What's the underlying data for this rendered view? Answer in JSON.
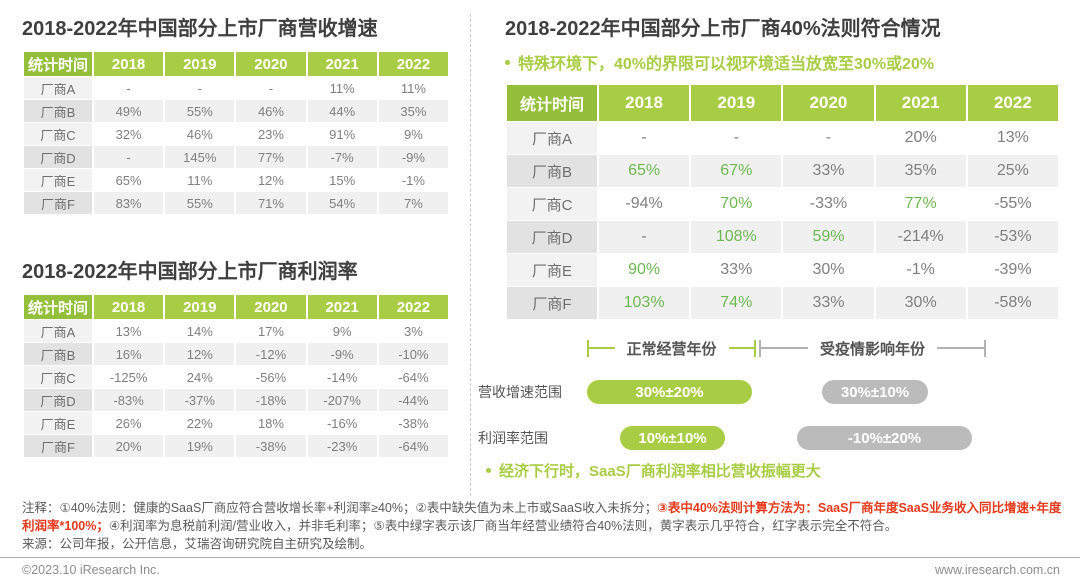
{
  "left": {
    "revenue_table": {
      "title": "2018-2022年中国部分上市厂商营收增速",
      "header": [
        "统计时间",
        "2018",
        "2019",
        "2020",
        "2021",
        "2022"
      ],
      "rows": [
        {
          "label": "厂商A",
          "values": [
            "-",
            "-",
            "-",
            "11%",
            "11%"
          ]
        },
        {
          "label": "厂商B",
          "values": [
            "49%",
            "55%",
            "46%",
            "44%",
            "35%"
          ]
        },
        {
          "label": "厂商C",
          "values": [
            "32%",
            "46%",
            "23%",
            "91%",
            "9%"
          ]
        },
        {
          "label": "厂商D",
          "values": [
            "-",
            "145%",
            "77%",
            "-7%",
            "-9%"
          ]
        },
        {
          "label": "厂商E",
          "values": [
            "65%",
            "11%",
            "12%",
            "15%",
            "-1%"
          ]
        },
        {
          "label": "厂商F",
          "values": [
            "83%",
            "55%",
            "71%",
            "54%",
            "7%"
          ]
        }
      ]
    },
    "profit_table": {
      "title": "2018-2022年中国部分上市厂商利润率",
      "header": [
        "统计时间",
        "2018",
        "2019",
        "2020",
        "2021",
        "2022"
      ],
      "rows": [
        {
          "label": "厂商A",
          "values": [
            "13%",
            "14%",
            "17%",
            "9%",
            "3%"
          ]
        },
        {
          "label": "厂商B",
          "values": [
            "16%",
            "12%",
            "-12%",
            "-9%",
            "-10%"
          ]
        },
        {
          "label": "厂商C",
          "values": [
            "-125%",
            "24%",
            "-56%",
            "-14%",
            "-64%"
          ]
        },
        {
          "label": "厂商D",
          "values": [
            "-83%",
            "-37%",
            "-18%",
            "-207%",
            "-44%"
          ]
        },
        {
          "label": "厂商E",
          "values": [
            "26%",
            "22%",
            "18%",
            "-16%",
            "-38%"
          ]
        },
        {
          "label": "厂商F",
          "values": [
            "20%",
            "19%",
            "-38%",
            "-23%",
            "-64%"
          ]
        }
      ]
    }
  },
  "right": {
    "rule40_table": {
      "title": "2018-2022年中国部分上市厂商40%法则符合情况",
      "note": "特殊环境下，40%的界限可以视环境适当放宽至30%或20%",
      "header": [
        "统计时间",
        "2018",
        "2019",
        "2020",
        "2021",
        "2022"
      ],
      "rows": [
        {
          "label": "厂商A",
          "values": [
            "-",
            "-",
            "-",
            "20%",
            "13%"
          ]
        },
        {
          "label": "厂商B",
          "values": [
            {
              "v": "65%",
              "green": true
            },
            {
              "v": "67%",
              "green": true
            },
            "33%",
            "35%",
            "25%"
          ]
        },
        {
          "label": "厂商C",
          "values": [
            "-94%",
            {
              "v": "70%",
              "green": true
            },
            "-33%",
            {
              "v": "77%",
              "green": true
            },
            "-55%"
          ]
        },
        {
          "label": "厂商D",
          "values": [
            "-",
            {
              "v": "108%",
              "green": true
            },
            {
              "v": "59%",
              "green": true
            },
            "-214%",
            "-53%"
          ]
        },
        {
          "label": "厂商E",
          "values": [
            {
              "v": "90%",
              "green": true
            },
            "33%",
            "30%",
            "-1%",
            "-39%"
          ]
        },
        {
          "label": "厂商F",
          "values": [
            {
              "v": "103%",
              "green": true
            },
            {
              "v": "74%",
              "green": true
            },
            "33%",
            "30%",
            "-58%"
          ]
        }
      ]
    },
    "legend": {
      "bracket_normal": "正常经营年份",
      "bracket_covid": "受疫情影响年份",
      "revenue_range_label": "营收增速范围",
      "revenue_range_normal": "30%±20%",
      "revenue_range_covid": "30%±10%",
      "profit_range_label": "利润率范围",
      "profit_range_normal": "10%±10%",
      "profit_range_covid": "-10%±20%",
      "note": "经济下行时，SaaS厂商利润率相比营收振幅更大"
    }
  },
  "notes": {
    "part1": "注释：①40%法则：健康的SaaS厂商应符合营收增长率+利润率≥40%；②表中缺失值为未上市或SaaS收入未拆分；",
    "part2_red": "③表中40%法则计算方法为：SaaS厂商年度SaaS业务收入同比增速+年度利润率*100%；",
    "part3": "④利润率为息税前利润/营业收入，并非毛利率；⑤表中绿字表示该厂商当年经营业绩符合40%法则，黄字表示几乎符合，红字表示完全不符合。",
    "source": "来源：公司年报，公开信息，艾瑞咨询研究院自主研究及绘制。"
  },
  "footer": {
    "copyright": "©2023.10 iResearch Inc.",
    "website": "www.iresearch.com.cn"
  },
  "colors": {
    "header_green": "#a8cd44",
    "header_green_dark": "#93bf3a",
    "green_value_text": "#6db850",
    "gray_pill": "#bbbbbb",
    "note_red": "#e5391b"
  }
}
